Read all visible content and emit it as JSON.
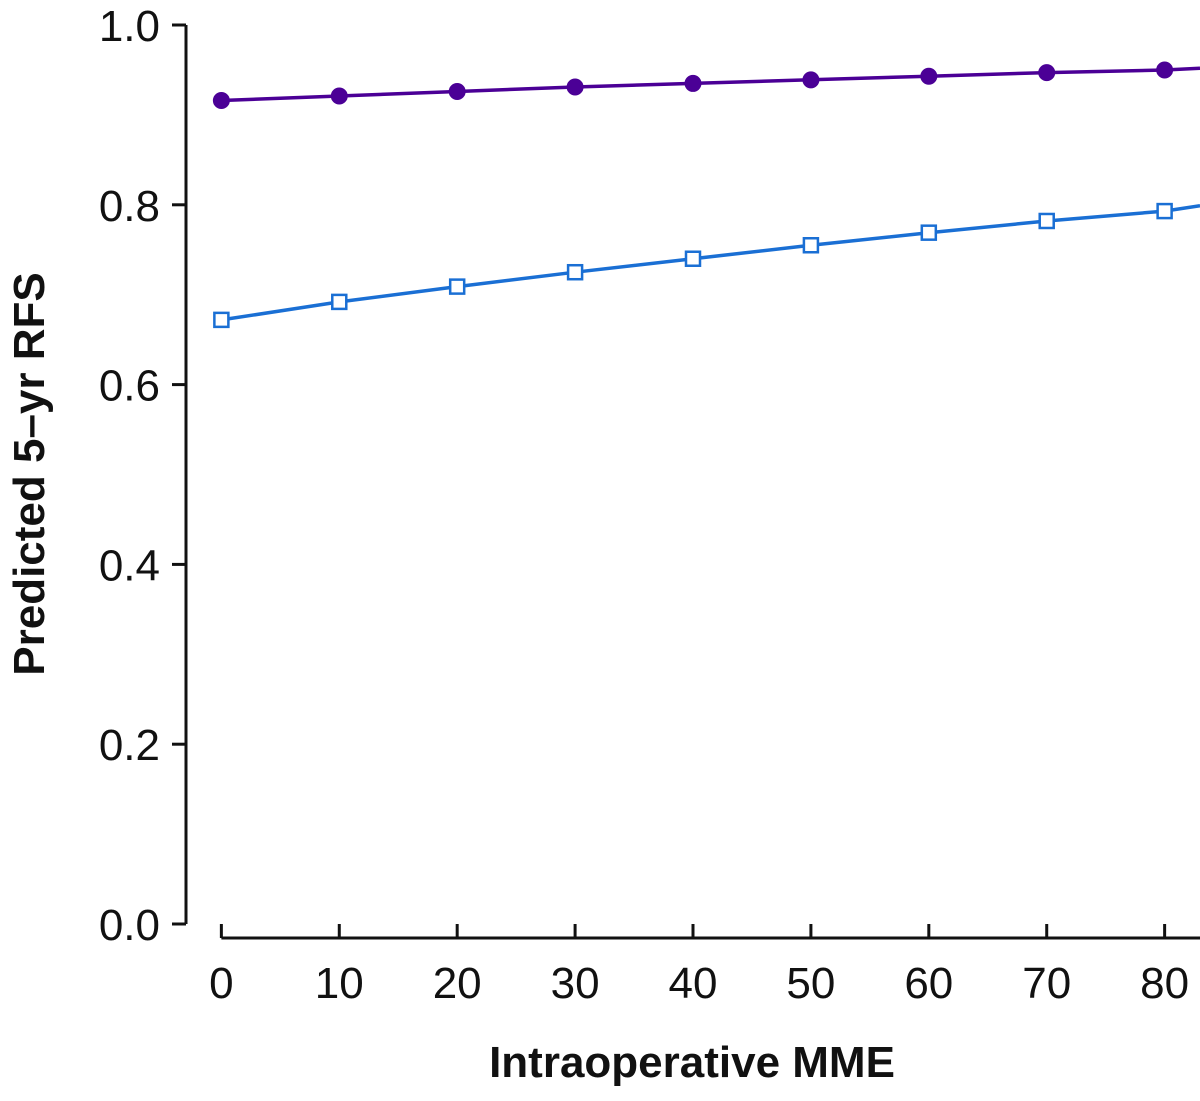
{
  "chart_data": {
    "type": "line",
    "title": "",
    "xlabel": "Intraoperative MME",
    "ylabel": "Predicted 5–yr RFS",
    "xlim": [
      -3,
      83
    ],
    "ylim": [
      0.0,
      1.0
    ],
    "x_ticks": [
      0,
      10,
      20,
      30,
      40,
      50,
      60,
      70,
      80
    ],
    "x_tick_labels": [
      "0",
      "10",
      "20",
      "30",
      "40",
      "50",
      "60",
      "70",
      "80"
    ],
    "y_ticks": [
      0.0,
      0.2,
      0.4,
      0.6,
      0.8,
      1.0
    ],
    "y_tick_labels": [
      "0.0",
      "0.2",
      "0.4",
      "0.6",
      "0.8",
      "1.0"
    ],
    "grid": false,
    "x": [
      0,
      10,
      20,
      30,
      40,
      50,
      60,
      70,
      80
    ],
    "series": [
      {
        "values": [
          0.916,
          0.921,
          0.926,
          0.931,
          0.935,
          0.939,
          0.943,
          0.947,
          0.95
        ],
        "color": "#4b0096",
        "marker": "filled-circle",
        "line_extends_to_x": 83,
        "line_end_value": 0.952
      },
      {
        "values": [
          0.672,
          0.692,
          0.709,
          0.725,
          0.74,
          0.755,
          0.769,
          0.782,
          0.793
        ],
        "color": "#1a6fd4",
        "marker": "open-square",
        "line_extends_to_x": 83,
        "line_end_value": 0.799
      }
    ]
  }
}
